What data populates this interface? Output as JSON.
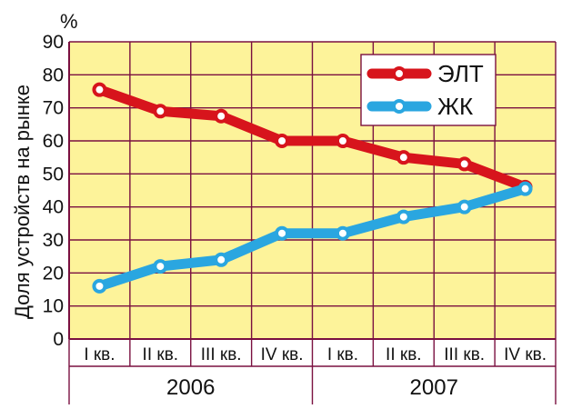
{
  "chart_data": {
    "type": "line",
    "unit": "%",
    "ylabel": "Доля устройств на рынке",
    "ylim": [
      0,
      90
    ],
    "yticks": [
      "0",
      "10",
      "20",
      "30",
      "40",
      "50",
      "60",
      "70",
      "80",
      "90"
    ],
    "categories": [
      "I кв.",
      "II кв.",
      "III кв.",
      "IV кв.",
      "I кв.",
      "II кв.",
      "III кв.",
      "IV кв."
    ],
    "years": [
      "2006",
      "2007"
    ],
    "grid": true,
    "legend_position": "top-right",
    "series": [
      {
        "name": "ЭЛТ",
        "color": "#d7141c",
        "values": [
          75.5,
          69,
          67.5,
          60,
          60,
          55,
          53,
          46
        ]
      },
      {
        "name": "ЖК",
        "color": "#2aa6e0",
        "values": [
          16,
          22,
          24,
          32,
          32,
          37,
          40,
          45.5
        ]
      }
    ],
    "colors": {
      "plot_background": "#fdf39a",
      "grid": "#7a1040",
      "marker_fill": "#ffffff"
    }
  }
}
